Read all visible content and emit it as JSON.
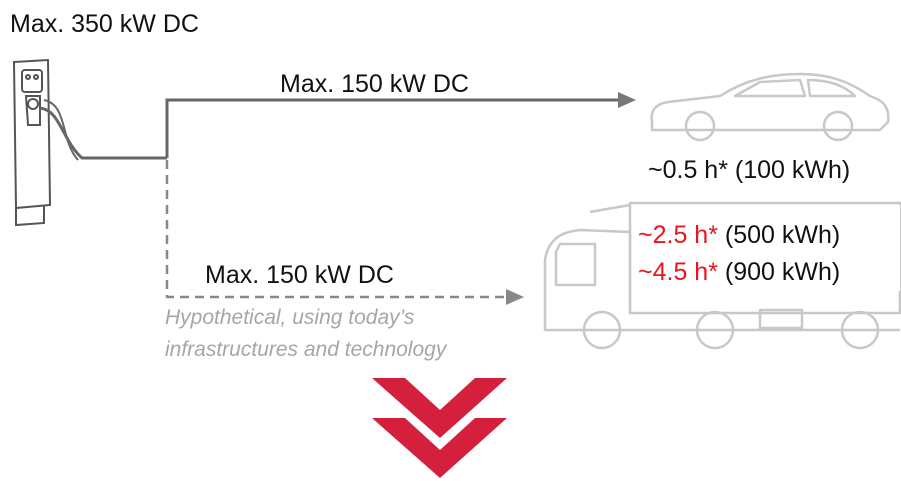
{
  "charger": {
    "label": "Max. 350 kW DC"
  },
  "car_route": {
    "label": "Max. 150 kW DC",
    "charge_time": "~0.5 h*",
    "capacity": "(100 kWh)"
  },
  "truck_route": {
    "label": "Max. 150 kW DC",
    "note": [
      "Hypothetical, using today’s",
      "infrastructures and technology"
    ],
    "scenarios": [
      {
        "time": "~2.5 h*",
        "capacity": "(500 kWh)"
      },
      {
        "time": "~4.5 h*",
        "capacity": "(900 kWh)"
      }
    ]
  }
}
